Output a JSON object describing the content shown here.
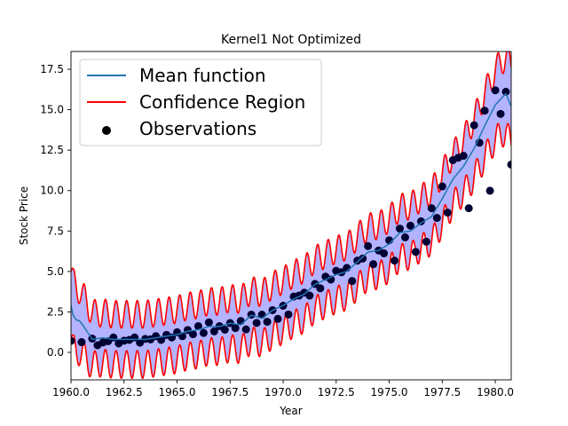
{
  "chart_data": {
    "type": "line",
    "title": "Kernel1 Not Optimized",
    "xlabel": "Year",
    "ylabel": "Stock Price",
    "xlim": [
      1960,
      1980.75
    ],
    "ylim": [
      -1.7,
      18.6
    ],
    "xticks": [
      1960.0,
      1962.5,
      1965.0,
      1967.5,
      1970.0,
      1972.5,
      1975.0,
      1977.5,
      1980.0
    ],
    "xtick_labels": [
      "1960.0",
      "1962.5",
      "1965.0",
      "1967.5",
      "1970.0",
      "1972.5",
      "1975.0",
      "1977.5",
      "1980.0"
    ],
    "yticks": [
      0.0,
      2.5,
      5.0,
      7.5,
      10.0,
      12.5,
      15.0,
      17.5
    ],
    "ytick_labels": [
      "0.0",
      "2.5",
      "5.0",
      "7.5",
      "10.0",
      "12.5",
      "15.0",
      "17.5"
    ],
    "grid": false,
    "legend_position": "top-left",
    "legend": [
      {
        "label": "Mean function",
        "kind": "line",
        "color": "#1f77b4"
      },
      {
        "label": "Confidence Region",
        "kind": "line",
        "color": "#ff0000"
      },
      {
        "label": "Observations",
        "kind": "point",
        "color": "#000000"
      }
    ],
    "colors": {
      "mean": "#1f77b4",
      "confidence": "#ff0000",
      "fill": "#b3b3ff",
      "observations": "#000033"
    },
    "series": [
      {
        "name": "Observations",
        "type": "scatter",
        "x": [
          1960.0,
          1960.5,
          1961.0,
          1961.25,
          1961.5,
          1961.75,
          1962.0,
          1962.25,
          1962.5,
          1962.75,
          1963.0,
          1963.25,
          1963.5,
          1963.75,
          1964.0,
          1964.25,
          1964.5,
          1964.75,
          1965.0,
          1965.25,
          1965.5,
          1965.75,
          1966.0,
          1966.25,
          1966.5,
          1966.75,
          1967.0,
          1967.25,
          1967.5,
          1967.75,
          1968.0,
          1968.25,
          1968.5,
          1968.75,
          1969.0,
          1969.25,
          1969.5,
          1969.75,
          1970.0,
          1970.25,
          1970.5,
          1970.75,
          1971.0,
          1971.25,
          1971.5,
          1971.75,
          1972.0,
          1972.25,
          1972.5,
          1972.75,
          1973.0,
          1973.25,
          1973.5,
          1973.75,
          1974.0,
          1974.25,
          1974.5,
          1974.75,
          1975.0,
          1975.25,
          1975.5,
          1975.75,
          1976.0,
          1976.25,
          1976.5,
          1976.75,
          1977.0,
          1977.25,
          1977.5,
          1977.75,
          1978.0,
          1978.25,
          1978.5,
          1978.75,
          1979.0,
          1979.25,
          1979.5,
          1979.75,
          1980.0,
          1980.25,
          1980.5,
          1980.75
        ],
        "y": [
          0.71,
          0.63,
          0.85,
          0.44,
          0.61,
          0.69,
          0.92,
          0.55,
          0.72,
          0.77,
          0.92,
          0.6,
          0.83,
          0.8,
          1.0,
          0.77,
          1.08,
          0.92,
          1.24,
          1.0,
          1.38,
          1.12,
          1.62,
          1.2,
          1.85,
          1.3,
          1.62,
          1.4,
          1.81,
          1.5,
          1.94,
          1.42,
          2.33,
          1.82,
          2.33,
          1.89,
          2.61,
          2.07,
          2.88,
          2.34,
          3.45,
          3.51,
          3.69,
          3.51,
          4.23,
          3.96,
          4.68,
          4.5,
          5.04,
          4.95,
          5.22,
          4.41,
          5.67,
          5.8,
          6.57,
          5.45,
          6.3,
          6.12,
          6.93,
          5.67,
          7.65,
          7.11,
          7.83,
          6.21,
          8.1,
          6.84,
          8.91,
          8.31,
          10.26,
          8.64,
          11.88,
          12.03,
          12.15,
          8.91,
          14.04,
          12.96,
          14.94,
          9.99,
          16.2,
          14.74,
          16.11,
          11.61
        ]
      },
      {
        "name": "Mean function",
        "type": "line",
        "x": [
          1960.0,
          1960.1,
          1960.25,
          1960.4,
          1960.6,
          1961.0,
          1961.5,
          1962.0,
          1962.5,
          1963.0,
          1963.5,
          1964.0,
          1964.5,
          1965.0,
          1965.5,
          1966.0,
          1966.5,
          1967.0,
          1967.5,
          1968.0,
          1968.5,
          1969.0,
          1969.5,
          1970.0,
          1970.5,
          1971.0,
          1971.5,
          1972.0,
          1972.5,
          1973.0,
          1973.5,
          1974.0,
          1974.5,
          1975.0,
          1975.5,
          1976.0,
          1976.5,
          1977.0,
          1977.5,
          1978.0,
          1978.5,
          1979.0,
          1979.5,
          1980.0,
          1980.5,
          1980.75
        ],
        "y": [
          2.9,
          2.3,
          2.0,
          1.95,
          1.6,
          0.8,
          0.9,
          0.8,
          0.8,
          0.8,
          0.8,
          0.9,
          1.0,
          1.1,
          1.3,
          1.4,
          1.6,
          1.6,
          1.8,
          1.7,
          2.3,
          2.1,
          2.6,
          2.9,
          3.3,
          3.6,
          4.2,
          4.5,
          4.8,
          5.0,
          5.6,
          6.2,
          6.3,
          6.7,
          7.4,
          7.5,
          8.0,
          8.4,
          9.5,
          10.7,
          11.5,
          12.6,
          14.0,
          15.3,
          16.0,
          15.2
        ]
      }
    ],
    "confidence_region": {
      "halfwidth_at_start": 2.1,
      "halfwidth_typical": 1.55,
      "halfwidth_at_end": 2.4,
      "oscillation_amplitude": 0.85,
      "oscillation_period_years": 0.5
    }
  }
}
